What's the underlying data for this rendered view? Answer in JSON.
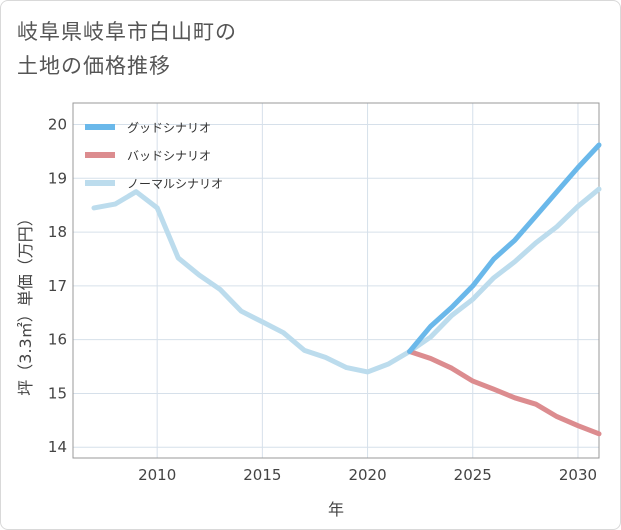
{
  "title": {
    "line1": "岐阜県岐阜市白山町の",
    "line2": "土地の価格推移"
  },
  "chart_data": {
    "type": "line",
    "title": "岐阜県岐阜市白山町の土地の価格推移",
    "xlabel": "年",
    "ylabel": "坪（3.3㎡）単価（万円）",
    "xlim": [
      2006,
      2031
    ],
    "ylim": [
      13.8,
      20.4
    ],
    "x_ticks": [
      2010,
      2015,
      2020,
      2025,
      2030
    ],
    "y_ticks": [
      14,
      15,
      16,
      17,
      18,
      19,
      20
    ],
    "grid": true,
    "legend_position": "top-left",
    "series": [
      {
        "name": "グッドシナリオ",
        "color": "#6ab8ea",
        "x": [
          2022,
          2023,
          2024,
          2025,
          2026,
          2027,
          2028,
          2029,
          2030,
          2031
        ],
        "y": [
          15.78,
          16.25,
          16.6,
          17.0,
          17.5,
          17.85,
          18.3,
          18.75,
          19.2,
          19.62
        ]
      },
      {
        "name": "バッドシナリオ",
        "color": "#dc8c8f",
        "x": [
          2022,
          2023,
          2024,
          2025,
          2026,
          2027,
          2028,
          2029,
          2030,
          2031
        ],
        "y": [
          15.78,
          15.65,
          15.47,
          15.23,
          15.08,
          14.92,
          14.8,
          14.57,
          14.4,
          14.25
        ]
      },
      {
        "name": "ノーマルシナリオ",
        "color": "#bcdced",
        "x": [
          2007,
          2008,
          2009,
          2010,
          2011,
          2012,
          2013,
          2014,
          2015,
          2016,
          2017,
          2018,
          2019,
          2020,
          2021,
          2022,
          2023,
          2024,
          2025,
          2026,
          2027,
          2028,
          2029,
          2030,
          2031
        ],
        "y": [
          18.45,
          18.52,
          18.75,
          18.45,
          17.52,
          17.2,
          16.93,
          16.53,
          16.33,
          16.13,
          15.8,
          15.67,
          15.48,
          15.4,
          15.55,
          15.78,
          16.05,
          16.45,
          16.75,
          17.15,
          17.45,
          17.8,
          18.1,
          18.48,
          18.8
        ]
      }
    ]
  }
}
